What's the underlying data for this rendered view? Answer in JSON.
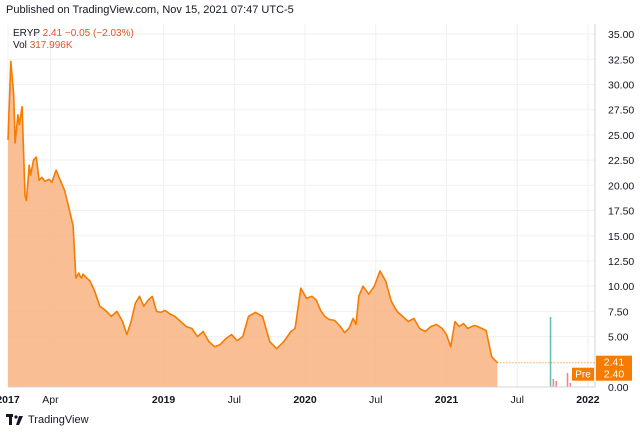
{
  "header": {
    "published": "Published on TradingView.com, Nov 15, 2021 07:47 UTC-5"
  },
  "legend": {
    "symbol": "ERYP",
    "last": "2.41",
    "change": "−0.05 (−2.03%)",
    "vol_label": "Vol",
    "vol_value": "317.996K"
  },
  "footer": {
    "brand": "TradingView"
  },
  "colors": {
    "line": "#f57c00",
    "fill": "#f9b383",
    "grid": "#eef0f3",
    "axis_text": "#131722",
    "price_tag": "#f57c00",
    "volume_up": "#26a69a",
    "volume_down": "#ef5350"
  },
  "chart_data": {
    "type": "area",
    "symbol": "ERYP",
    "x_axis_ticks": [
      "2017",
      "Apr",
      "2019",
      "Jul",
      "2020",
      "Jul",
      "2021",
      "Jul",
      "2022"
    ],
    "y_axis_ticks": [
      "35.00",
      "32.50",
      "30.00",
      "27.50",
      "25.00",
      "22.50",
      "20.00",
      "17.50",
      "15.00",
      "12.50",
      "10.00",
      "7.50",
      "5.00",
      "0.00"
    ],
    "ylim": [
      0,
      36
    ],
    "xlim": [
      2017.85,
      2022.0
    ],
    "price_tags": [
      {
        "label": "",
        "value": "2.41"
      },
      {
        "label": "Pre",
        "value": "2.40"
      }
    ],
    "series": [
      {
        "x": [
          2017.85,
          2017.87,
          2017.89,
          2017.9,
          2017.92,
          2017.93,
          2017.95,
          2017.97,
          2017.98,
          2018.0,
          2018.01,
          2018.03,
          2018.05,
          2018.07,
          2018.09,
          2018.11,
          2018.14,
          2018.16,
          2018.19,
          2018.22,
          2018.25,
          2018.28,
          2018.31,
          2018.33,
          2018.35,
          2018.36,
          2018.37,
          2018.38,
          2018.4,
          2018.43,
          2018.46,
          2018.5,
          2018.54,
          2018.58,
          2018.62,
          2018.66,
          2018.69,
          2018.72,
          2018.75,
          2018.78,
          2018.81,
          2018.84,
          2018.87,
          2018.9,
          2018.93,
          2018.96,
          2019.0,
          2019.03,
          2019.07,
          2019.11,
          2019.15,
          2019.19,
          2019.23,
          2019.27,
          2019.31,
          2019.35,
          2019.39,
          2019.43,
          2019.47,
          2019.51,
          2019.55,
          2019.6,
          2019.65,
          2019.7,
          2019.75,
          2019.8,
          2019.85,
          2019.88,
          2019.92,
          2019.96,
          2020.0,
          2020.03,
          2020.06,
          2020.09,
          2020.12,
          2020.16,
          2020.2,
          2020.23,
          2020.26,
          2020.29,
          2020.31,
          2020.33,
          2020.36,
          2020.4,
          2020.44,
          2020.48,
          2020.52,
          2020.56,
          2020.6,
          2020.64,
          2020.68,
          2020.72,
          2020.76,
          2020.8,
          2020.84,
          2020.88,
          2020.92,
          2020.95,
          2020.98,
          2021.01,
          2021.04,
          2021.07,
          2021.1,
          2021.13,
          2021.15,
          2021.17,
          2021.2,
          2021.23,
          2021.27,
          2021.31,
          2021.35,
          2021.39,
          2021.43,
          2021.47,
          2021.51,
          2021.53,
          2021.55,
          2021.57,
          2021.6,
          2021.64,
          2021.68,
          2021.72,
          2021.76,
          2021.79,
          2021.8,
          2021.82,
          2021.85
        ],
        "y": [
          24.5,
          32.3,
          29.0,
          24.2,
          27.0,
          26.0,
          27.8,
          19.0,
          18.5,
          22.0,
          21.0,
          22.5,
          22.8,
          20.5,
          20.8,
          20.4,
          20.6,
          20.3,
          21.5,
          20.5,
          19.5,
          17.8,
          16.0,
          10.8,
          11.3,
          11.0,
          10.8,
          11.2,
          10.9,
          10.5,
          9.6,
          8.0,
          7.6,
          7.0,
          7.5,
          6.5,
          5.2,
          6.5,
          8.3,
          9.0,
          8.0,
          8.6,
          9.0,
          7.5,
          7.4,
          7.6,
          7.2,
          7.0,
          6.5,
          6.0,
          5.8,
          5.0,
          5.5,
          4.5,
          4.0,
          4.2,
          4.8,
          5.2,
          4.6,
          5.0,
          7.0,
          7.4,
          7.0,
          4.5,
          3.8,
          4.5,
          5.5,
          5.8,
          9.8,
          8.8,
          9.0,
          8.6,
          7.6,
          7.0,
          6.7,
          6.6,
          6.0,
          5.4,
          5.8,
          6.8,
          6.2,
          9.0,
          10.0,
          9.2,
          10.0,
          11.5,
          10.5,
          8.5,
          7.5,
          7.0,
          6.5,
          6.8,
          5.8,
          5.5,
          6.0,
          6.2,
          5.8,
          5.2,
          4.0,
          6.5,
          6.0,
          6.3,
          5.8,
          6.0,
          6.1,
          6.0,
          5.8,
          5.6,
          3.0,
          2.41,
          0,
          0,
          0,
          0,
          0,
          0,
          0,
          0,
          0,
          0,
          0,
          0,
          0,
          0,
          0,
          0,
          0
        ]
      }
    ]
  }
}
